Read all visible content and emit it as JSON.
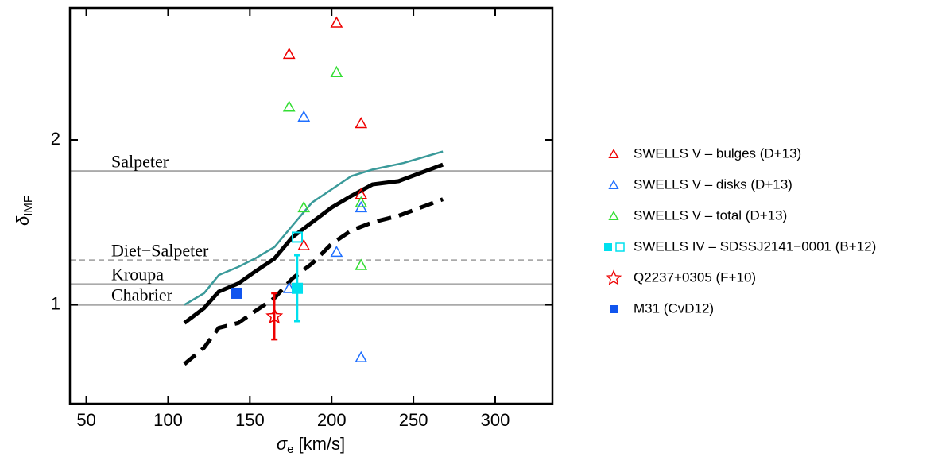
{
  "chart_data": {
    "type": "scatter",
    "xlabel": {
      "symbol": "σ",
      "sub": "e",
      "unit": "[km/s]"
    },
    "ylabel": {
      "symbol": "δ",
      "sub": "IMF"
    },
    "xlim": [
      40,
      335
    ],
    "xticks": [
      50,
      100,
      150,
      200,
      250,
      300
    ],
    "ylim": [
      0.4,
      2.8
    ],
    "yticks": [
      1,
      2
    ],
    "reference_lines": [
      {
        "label": "Salpeter",
        "value": 1.81,
        "dashed": false,
        "color": "#aaaaaa"
      },
      {
        "label": "Diet−Salpeter",
        "value": 1.27,
        "dashed": true,
        "color": "#aaaaaa"
      },
      {
        "label": "Kroupa",
        "value": 1.125,
        "dashed": false,
        "color": "#aaaaaa"
      },
      {
        "label": "Chabrier",
        "value": 1.0,
        "dashed": false,
        "color": "#aaaaaa"
      }
    ],
    "lines": [
      {
        "color": "#3a9a9a",
        "dashed": false,
        "width": 2.5,
        "x": [
          110,
          122,
          131,
          143,
          153,
          165,
          176,
          188,
          200,
          212,
          225,
          244,
          268
        ],
        "y": [
          1.0,
          1.07,
          1.18,
          1.23,
          1.28,
          1.35,
          1.48,
          1.62,
          1.7,
          1.78,
          1.82,
          1.86,
          1.93
        ]
      },
      {
        "color": "#000000",
        "dashed": false,
        "width": 5,
        "x": [
          110,
          122,
          131,
          143,
          153,
          165,
          176,
          188,
          200,
          212,
          225,
          241,
          268
        ],
        "y": [
          0.89,
          0.98,
          1.08,
          1.13,
          1.2,
          1.28,
          1.41,
          1.5,
          1.59,
          1.66,
          1.73,
          1.75,
          1.85
        ]
      },
      {
        "color": "#000000",
        "dashed": true,
        "width": 5,
        "x": [
          110,
          122,
          131,
          143,
          153,
          165,
          176,
          188,
          200,
          212,
          225,
          241,
          268
        ],
        "y": [
          0.64,
          0.74,
          0.86,
          0.89,
          0.96,
          1.04,
          1.16,
          1.25,
          1.37,
          1.45,
          1.5,
          1.54,
          1.64
        ]
      }
    ],
    "series": [
      {
        "name": "SWELLS V – bulges (D+13)",
        "color": "#ee0000",
        "marker": "triangle",
        "x": [
          203,
          174,
          218,
          218,
          183
        ],
        "y": [
          2.71,
          2.52,
          2.1,
          1.67,
          1.36
        ]
      },
      {
        "name": "SWELLS V – disks (D+13)",
        "color": "#1f6fff",
        "marker": "triangle",
        "x": [
          183,
          218,
          203,
          174,
          218
        ],
        "y": [
          2.14,
          1.59,
          1.32,
          1.1,
          0.68
        ]
      },
      {
        "name": "SWELLS V – total (D+13)",
        "color": "#33dd33",
        "marker": "triangle",
        "x": [
          203,
          174,
          183,
          218,
          218
        ],
        "y": [
          2.41,
          2.2,
          1.59,
          1.62,
          1.24
        ]
      },
      {
        "name": "SWELLS IV – SDSSJ2141−0001 (B+12)",
        "color": "#00e0ee",
        "marker": "square-pair",
        "x": [
          179,
          179
        ],
        "y": [
          1.1,
          1.41
        ],
        "filled": [
          true,
          false
        ],
        "err": [
          0.2,
          null
        ]
      },
      {
        "name": "Q2237+0305 (F+10)",
        "color": "#ee0000",
        "marker": "star",
        "x": [
          165
        ],
        "y": [
          0.93
        ],
        "err": [
          0.14
        ]
      },
      {
        "name": "M31 (CvD12)",
        "color": "#1155ee",
        "marker": "square",
        "x": [
          142
        ],
        "y": [
          1.07
        ]
      }
    ]
  }
}
